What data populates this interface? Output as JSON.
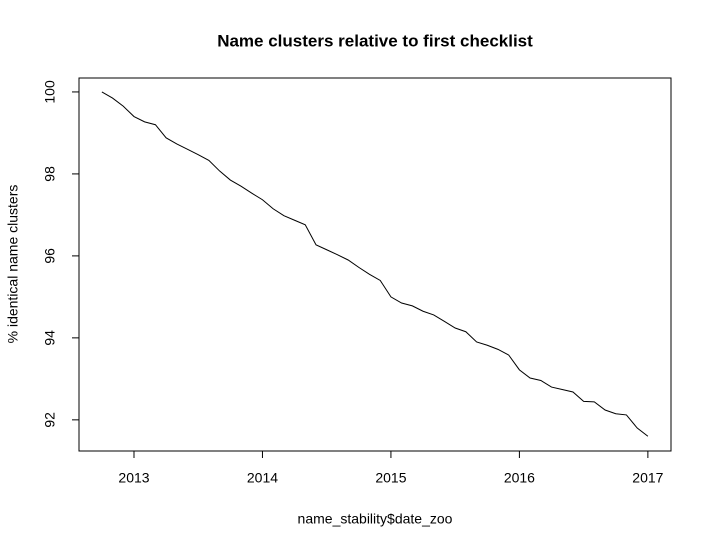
{
  "chart_data": {
    "type": "line",
    "title": "Name clusters relative to first checklist",
    "xlabel": "name_stability$date_zoo",
    "ylabel": "% identical name clusters",
    "x": [
      2012.75,
      2012.833,
      2012.917,
      2013.0,
      2013.083,
      2013.167,
      2013.25,
      2013.333,
      2013.417,
      2013.5,
      2013.583,
      2013.667,
      2013.75,
      2013.833,
      2013.917,
      2014.0,
      2014.083,
      2014.167,
      2014.25,
      2014.333,
      2014.417,
      2014.5,
      2014.583,
      2014.667,
      2014.75,
      2014.833,
      2014.917,
      2015.0,
      2015.083,
      2015.167,
      2015.25,
      2015.333,
      2015.417,
      2015.5,
      2015.583,
      2015.667,
      2015.75,
      2015.833,
      2015.917,
      2016.0,
      2016.083,
      2016.167,
      2016.25,
      2016.333,
      2016.417,
      2016.5,
      2016.583,
      2016.667,
      2016.75,
      2016.833,
      2016.917,
      2017.0
    ],
    "series": [
      {
        "name": "name_stability",
        "color": "#000000",
        "values": [
          100.0,
          99.85,
          99.65,
          99.4,
          99.27,
          99.2,
          98.88,
          98.73,
          98.6,
          98.47,
          98.33,
          98.07,
          97.85,
          97.7,
          97.53,
          97.37,
          97.15,
          96.98,
          96.87,
          96.76,
          96.27,
          96.15,
          96.03,
          95.9,
          95.72,
          95.55,
          95.4,
          95.0,
          94.85,
          94.78,
          94.65,
          94.56,
          94.4,
          94.24,
          94.15,
          93.9,
          93.82,
          93.72,
          93.58,
          93.22,
          93.02,
          92.96,
          92.8,
          92.74,
          92.68,
          92.45,
          92.44,
          92.24,
          92.15,
          92.12,
          91.8,
          91.6
        ]
      }
    ],
    "xlim": [
      2012.572,
      2017.18
    ],
    "xticks": [
      2013,
      2014,
      2015,
      2016,
      2017
    ],
    "ylim": [
      91.24,
      100.34
    ],
    "yticks": [
      92,
      94,
      96,
      98,
      100
    ]
  }
}
